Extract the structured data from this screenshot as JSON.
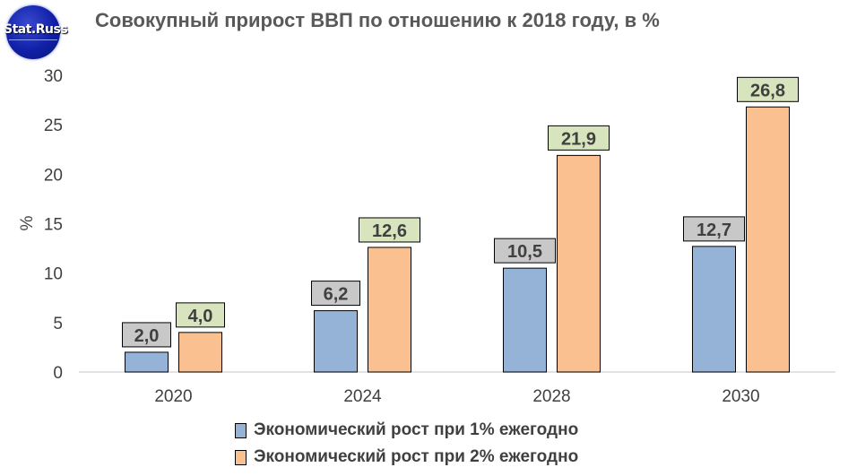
{
  "logo": {
    "text": "Stat.Russ"
  },
  "title": "Совокупный прирост ВВП по отношению к 2018 году, в %",
  "colors": {
    "series1": "#95b3d7",
    "series2": "#fac090",
    "label1_bg": "#c8c8c8",
    "label2_bg": "#d7e4bd"
  },
  "chart_data": {
    "type": "bar",
    "title": "Совокупный прирост ВВП по отношению к 2018 году, в %",
    "xlabel": "",
    "ylabel": "%",
    "categories": [
      "2020",
      "2024",
      "2028",
      "2030"
    ],
    "ylim": [
      0,
      30
    ],
    "yticks": [
      0,
      5,
      10,
      15,
      20,
      25,
      30
    ],
    "grid": false,
    "legend_position": "bottom",
    "series": [
      {
        "name": "Экономический рост при 1% ежегодно",
        "values": [
          2.0,
          6.2,
          10.5,
          12.7
        ],
        "labels": [
          "2,0",
          "6,2",
          "10,5",
          "12,7"
        ]
      },
      {
        "name": "Экономический рост при 2% ежегодно",
        "values": [
          4.0,
          12.6,
          21.9,
          26.8
        ],
        "labels": [
          "4,0",
          "12,6",
          "21,9",
          "26,8"
        ]
      }
    ]
  }
}
